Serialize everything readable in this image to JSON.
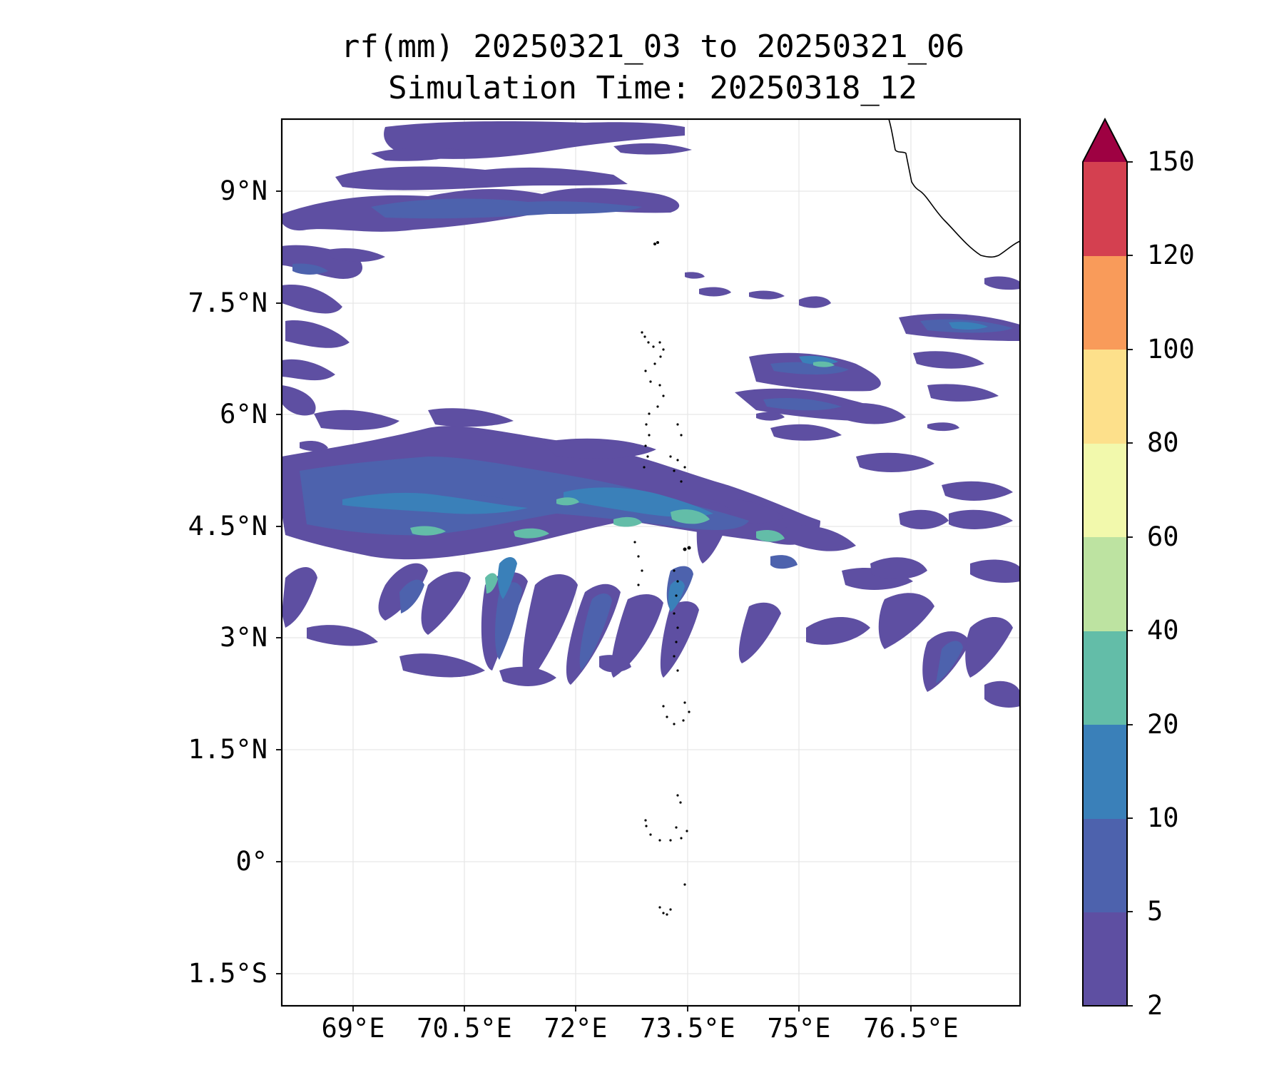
{
  "title_line1": "rf(mm) 20250321_03 to 20250321_06",
  "title_line2": "Simulation Time: 20250318_12",
  "map": {
    "lon_range": [
      68.0,
      77.9
    ],
    "lat_range": [
      -1.9,
      10.0
    ],
    "lat_ticks": [
      {
        "value": 9.0,
        "label": "9°N"
      },
      {
        "value": 7.5,
        "label": "7.5°N"
      },
      {
        "value": 6.0,
        "label": "6°N"
      },
      {
        "value": 4.5,
        "label": "4.5°N"
      },
      {
        "value": 3.0,
        "label": "3°N"
      },
      {
        "value": 1.5,
        "label": "1.5°N"
      },
      {
        "value": 0.0,
        "label": "0°"
      },
      {
        "value": -1.5,
        "label": "1.5°S"
      }
    ],
    "lon_ticks": [
      {
        "value": 69.0,
        "label": "69°E"
      },
      {
        "value": 70.5,
        "label": "70.5°E"
      },
      {
        "value": 72.0,
        "label": "72°E"
      },
      {
        "value": 73.5,
        "label": "73.5°E"
      },
      {
        "value": 75.0,
        "label": "75°E"
      },
      {
        "value": 76.5,
        "label": "76.5°E"
      }
    ],
    "grid": true,
    "land_features": [
      "southern tip of India (top-right)",
      "Maldives atolls (center)"
    ]
  },
  "colorbar": {
    "levels": [
      2,
      5,
      10,
      20,
      40,
      60,
      80,
      100,
      120,
      150
    ],
    "colors": [
      "#5e4fa2",
      "#4d62ad",
      "#3a80b9",
      "#63bda8",
      "#bde3a1",
      "#f2f9ac",
      "#fde08b",
      "#f99b5a",
      "#d44050"
    ],
    "extend_color": "#9e0142",
    "extend": "max",
    "labels": [
      "150",
      "120",
      "100",
      "80",
      "60",
      "40",
      "20",
      "10",
      "5",
      "2"
    ]
  },
  "colors": {
    "rain_light": "#5e4fa2",
    "rain_moderate": "#4d62ad",
    "rain_heavy": "#3a80b9",
    "rain_very_heavy": "#63bda8"
  }
}
